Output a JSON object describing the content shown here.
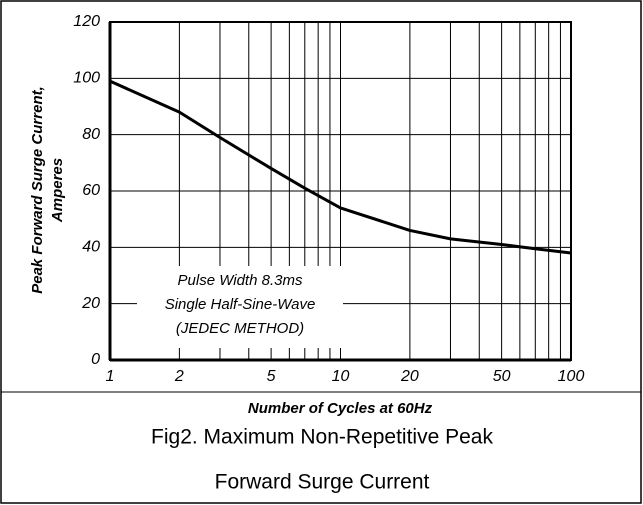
{
  "chart_data": {
    "type": "line",
    "y_label": [
      "Peak Forward Surge Current,",
      "Amperes"
    ],
    "x_label": "Number of Cycles at 60Hz",
    "annotation": [
      "Pulse Width 8.3ms",
      "Single Half-Sine-Wave",
      "(JEDEC METHOD)"
    ],
    "caption": [
      "Fig2. Maximum Non-Repetitive Peak",
      "Forward Surge Current"
    ],
    "x": [
      1,
      2,
      3,
      5,
      7,
      10,
      20,
      30,
      50,
      70,
      100
    ],
    "series": [
      {
        "name": "Peak Forward Surge Current",
        "color": "#000000",
        "values": [
          99,
          88,
          79,
          68,
          61,
          54,
          46,
          43,
          41,
          39.5,
          38
        ]
      }
    ],
    "xscale": "log",
    "xlim": [
      1,
      100
    ],
    "ylim": [
      0,
      120
    ],
    "xticks": [
      1,
      2,
      5,
      10,
      20,
      50,
      100
    ],
    "xminorticks": [
      3,
      4,
      6,
      7,
      8,
      9,
      30,
      40,
      60,
      70,
      80,
      90
    ],
    "yticks": [
      0,
      20,
      40,
      60,
      80,
      100,
      120
    ],
    "grid": true
  }
}
